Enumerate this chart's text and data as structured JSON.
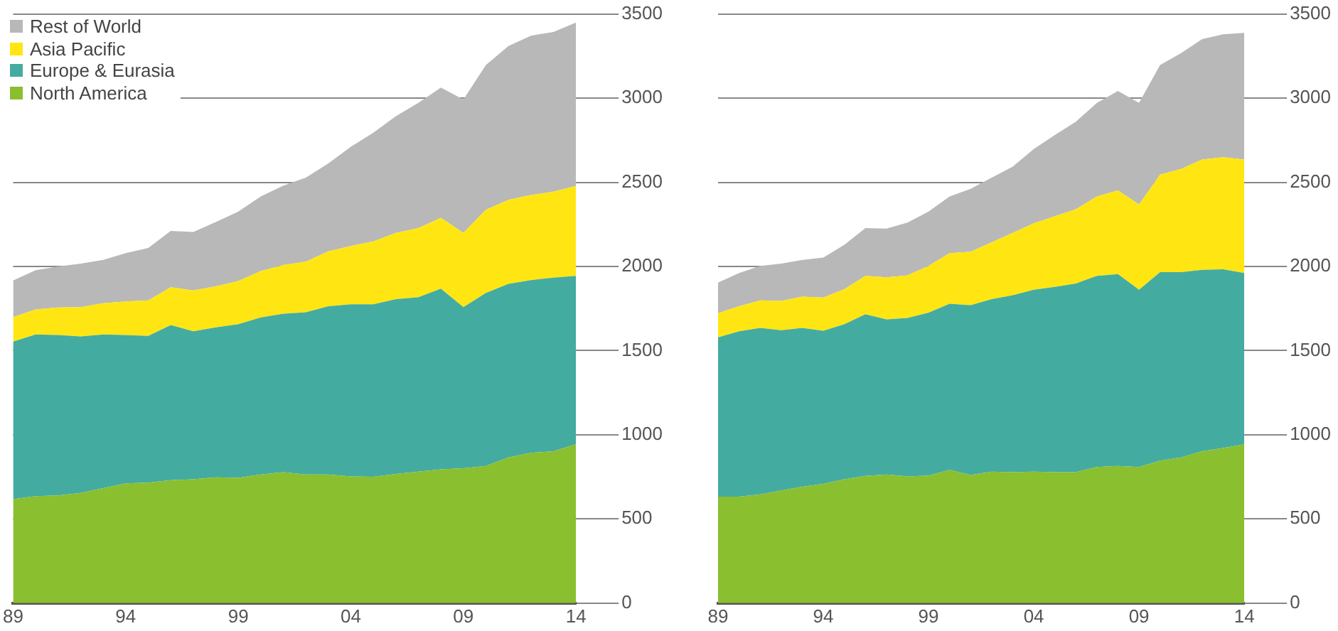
{
  "chart_data": [
    {
      "type": "area",
      "stacked": true,
      "grid": "y",
      "legend": "top left",
      "xlim": [
        1989,
        2014
      ],
      "xticks": [
        {
          "value": 1989,
          "label": "89"
        },
        {
          "value": 1994,
          "label": "94"
        },
        {
          "value": 1999,
          "label": "99"
        },
        {
          "value": 2004,
          "label": "04"
        },
        {
          "value": 2009,
          "label": "09"
        },
        {
          "value": 2014,
          "label": "14"
        }
      ],
      "ylim": [
        0,
        3500
      ],
      "yticks": [
        0,
        500,
        1000,
        1500,
        2000,
        2500,
        3000,
        3500
      ],
      "x": [
        1989,
        1990,
        1991,
        1992,
        1993,
        1994,
        1995,
        1996,
        1997,
        1998,
        1999,
        2000,
        2001,
        2002,
        2003,
        2004,
        2005,
        2006,
        2007,
        2008,
        2009,
        2010,
        2011,
        2012,
        2013,
        2014
      ],
      "series": [
        {
          "name": "North America",
          "color": "#8abf2f",
          "values": [
            618,
            635,
            640,
            654,
            683,
            711,
            716,
            730,
            736,
            747,
            744,
            764,
            778,
            764,
            764,
            753,
            750,
            767,
            781,
            795,
            801,
            815,
            865,
            893,
            902,
            944
          ]
        },
        {
          "name": "Europe & Eurasia",
          "color": "#44aba0",
          "values": [
            935,
            961,
            953,
            930,
            913,
            882,
            871,
            922,
            879,
            891,
            913,
            933,
            941,
            964,
            1000,
            1022,
            1025,
            1039,
            1036,
            1073,
            957,
            1028,
            1031,
            1026,
            1031,
            1000
          ]
        },
        {
          "name": "Asia Pacific",
          "color": "#ffe612",
          "values": [
            146,
            148,
            163,
            174,
            185,
            199,
            211,
            224,
            242,
            244,
            256,
            275,
            289,
            300,
            326,
            346,
            374,
            393,
            411,
            421,
            441,
            494,
            500,
            505,
            511,
            534
          ]
        },
        {
          "name": "Rest of World",
          "color": "#b8b8b8",
          "values": [
            217,
            234,
            244,
            259,
            258,
            287,
            312,
            335,
            348,
            382,
            413,
            444,
            472,
            500,
            522,
            590,
            646,
            694,
            744,
            773,
            793,
            860,
            913,
            947,
            949,
            971
          ]
        }
      ]
    },
    {
      "type": "area",
      "stacked": true,
      "grid": "y",
      "xlim": [
        1989,
        2014
      ],
      "xticks": [
        {
          "value": 1989,
          "label": "89"
        },
        {
          "value": 1994,
          "label": "94"
        },
        {
          "value": 1999,
          "label": "99"
        },
        {
          "value": 2004,
          "label": "04"
        },
        {
          "value": 2009,
          "label": "09"
        },
        {
          "value": 2014,
          "label": "14"
        }
      ],
      "ylim": [
        0,
        3500
      ],
      "yticks": [
        0,
        500,
        1000,
        1500,
        2000,
        2500,
        3000,
        3500
      ],
      "x": [
        1989,
        1990,
        1991,
        1992,
        1993,
        1994,
        1995,
        1996,
        1997,
        1998,
        1999,
        2000,
        2001,
        2002,
        2003,
        2004,
        2005,
        2006,
        2007,
        2008,
        2009,
        2010,
        2011,
        2012,
        2013,
        2014
      ],
      "series": [
        {
          "color": "#8abf2f",
          "values": [
            632,
            632,
            646,
            669,
            691,
            708,
            736,
            756,
            764,
            753,
            758,
            792,
            761,
            781,
            778,
            781,
            778,
            778,
            809,
            815,
            809,
            846,
            865,
            902,
            921,
            944
          ]
        },
        {
          "color": "#44aba0",
          "values": [
            947,
            983,
            989,
            952,
            944,
            910,
            921,
            960,
            921,
            941,
            967,
            986,
            1009,
            1025,
            1051,
            1081,
            1101,
            1121,
            1135,
            1140,
            1053,
            1120,
            1101,
            1078,
            1062,
            1017
          ]
        },
        {
          "color": "#ffe612",
          "values": [
            143,
            149,
            163,
            174,
            185,
            197,
            208,
            228,
            250,
            253,
            278,
            301,
            317,
            337,
            370,
            394,
            419,
            441,
            472,
            497,
            506,
            579,
            613,
            655,
            666,
            674
          ]
        },
        {
          "color": "#b8b8b8",
          "values": [
            182,
            197,
            205,
            222,
            219,
            238,
            264,
            284,
            290,
            314,
            323,
            337,
            374,
            385,
            394,
            441,
            483,
            520,
            556,
            590,
            604,
            652,
            688,
            716,
            730,
            753
          ]
        }
      ]
    }
  ]
}
